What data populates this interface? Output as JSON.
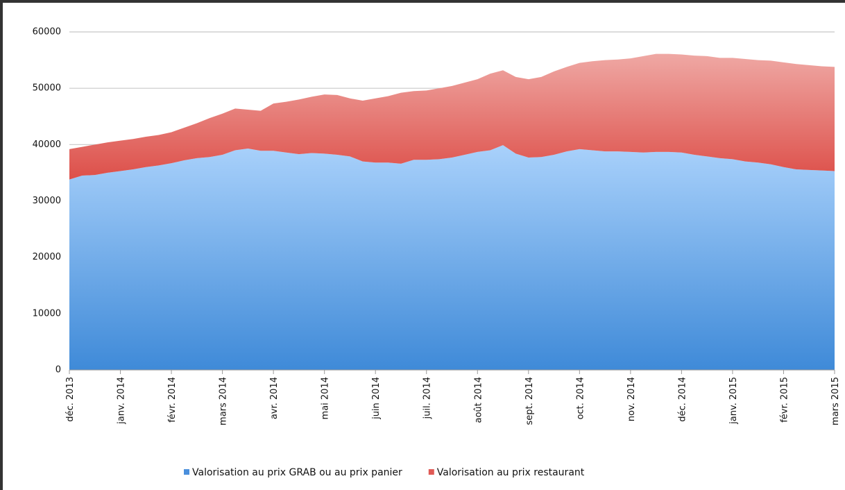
{
  "chart_data": {
    "type": "stacked-area",
    "categories": [
      "déc. 2013",
      null,
      null,
      null,
      "janv. 2014",
      null,
      null,
      null,
      "févr. 2014",
      null,
      null,
      null,
      "mars 2014",
      null,
      null,
      null,
      "avr. 2014",
      null,
      null,
      null,
      "mai 2014",
      null,
      null,
      null,
      "juin 2014",
      null,
      null,
      null,
      "juil. 2014",
      null,
      null,
      null,
      "août 2014",
      null,
      null,
      null,
      "sept. 2014",
      null,
      null,
      null,
      "oct. 2014",
      null,
      null,
      null,
      "nov. 2014",
      null,
      null,
      null,
      "déc. 2014",
      null,
      null,
      null,
      "janv. 2015",
      null,
      null,
      null,
      "févr. 2015",
      null,
      null,
      null,
      "mars 2015"
    ],
    "series": [
      {
        "name": "Valorisation au prix GRAB ou au prix panier",
        "color": "#4a8fdc",
        "values": [
          33800,
          34500,
          34600,
          35000,
          35300,
          35600,
          36000,
          36300,
          36700,
          37200,
          37600,
          37800,
          38200,
          39000,
          39300,
          38900,
          38900,
          38600,
          38300,
          38500,
          38400,
          38200,
          37900,
          37000,
          36800,
          36800,
          36600,
          37300,
          37300,
          37400,
          37700,
          38200,
          38700,
          39000,
          39900,
          38400,
          37700,
          37800,
          38200,
          38800,
          39200,
          39000,
          38800,
          38800,
          38700,
          38600,
          38700,
          38700,
          38600,
          38200,
          37900,
          37600,
          37400,
          37000,
          36800,
          36500,
          36000,
          35600,
          35500,
          35400,
          35300
        ]
      },
      {
        "name": "Valorisation au prix restaurant",
        "color": "#e05a55",
        "values": [
          5400,
          5100,
          5400,
          5400,
          5400,
          5400,
          5400,
          5400,
          5500,
          5800,
          6200,
          6900,
          7300,
          7400,
          6900,
          7100,
          8400,
          9000,
          9700,
          10000,
          10500,
          10600,
          10300,
          10800,
          11400,
          11800,
          12600,
          12200,
          12300,
          12600,
          12700,
          12800,
          12900,
          13600,
          13300,
          13600,
          13900,
          14200,
          14800,
          15000,
          15300,
          15800,
          16200,
          16300,
          16600,
          17100,
          17400,
          17400,
          17400,
          17600,
          17800,
          17800,
          18000,
          18200,
          18200,
          18400,
          18600,
          18700,
          18600,
          18500,
          18500
        ]
      }
    ],
    "ylim": [
      0,
      60000
    ],
    "yticks": [
      0,
      10000,
      20000,
      30000,
      40000,
      50000,
      60000
    ],
    "grid": true,
    "legend": "bottom"
  }
}
